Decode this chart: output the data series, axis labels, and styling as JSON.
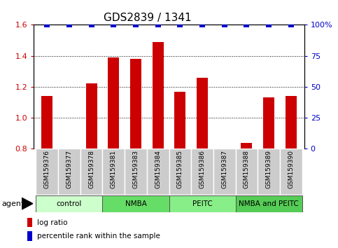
{
  "title": "GDS2839 / 1341",
  "samples": [
    "GSM159376",
    "GSM159377",
    "GSM159378",
    "GSM159381",
    "GSM159383",
    "GSM159384",
    "GSM159385",
    "GSM159386",
    "GSM159387",
    "GSM159388",
    "GSM159389",
    "GSM159390"
  ],
  "log_ratio": [
    1.14,
    0.8,
    1.22,
    1.39,
    1.38,
    1.49,
    1.17,
    1.26,
    0.8,
    0.84,
    1.13,
    1.14
  ],
  "percentile": [
    100,
    100,
    100,
    100,
    100,
    100,
    100,
    100,
    100,
    100,
    100,
    100
  ],
  "bar_color": "#cc0000",
  "dot_color": "#0000cc",
  "ylim_left": [
    0.8,
    1.6
  ],
  "ylim_right": [
    0,
    100
  ],
  "yticks_left": [
    0.8,
    1.0,
    1.2,
    1.4,
    1.6
  ],
  "yticks_right": [
    0,
    25,
    50,
    75,
    100
  ],
  "group_ranges": [
    {
      "start": 0,
      "end": 2,
      "label": "control",
      "color": "#ccffcc"
    },
    {
      "start": 3,
      "end": 5,
      "label": "NMBA",
      "color": "#66dd66"
    },
    {
      "start": 6,
      "end": 8,
      "label": "PEITC",
      "color": "#88ee88"
    },
    {
      "start": 9,
      "end": 11,
      "label": "NMBA and PEITC",
      "color": "#55cc55"
    }
  ],
  "agent_label": "agent",
  "legend_items": [
    {
      "label": "log ratio",
      "color": "#cc0000"
    },
    {
      "label": "percentile rank within the sample",
      "color": "#0000cc"
    }
  ],
  "tick_area_color": "#cccccc",
  "bar_width": 0.5,
  "dot_size": 40,
  "title_fontsize": 11
}
